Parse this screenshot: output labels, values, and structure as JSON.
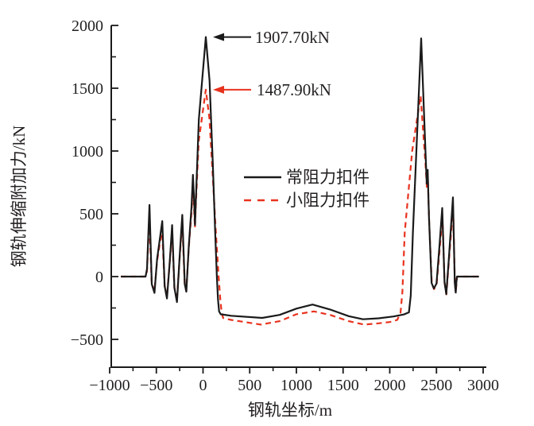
{
  "figure": {
    "background": "#ffffff",
    "accent_red": "#e8321e",
    "ink": "#1a1a1a"
  },
  "chart_data": {
    "type": "line",
    "title": "",
    "xlabel": "钢轨坐标/m",
    "ylabel": "钢轨伸缩附加力/kN",
    "x_range": [
      -1000,
      3000
    ],
    "y_range": [
      -720,
      2000
    ],
    "grid": "off",
    "x_ticks": {
      "major_values": [
        -1000,
        -500,
        0,
        500,
        1000,
        1500,
        2000,
        2500,
        3000
      ],
      "major_labels": [
        "−1000",
        "−500",
        "0",
        "500",
        "1000",
        "1500",
        "2000",
        "2500",
        "3000"
      ],
      "minor_values": [
        -750,
        -250,
        250,
        750,
        1250,
        1750,
        2250,
        2750
      ]
    },
    "y_ticks": {
      "major_values": [
        2000,
        1500,
        1000,
        500,
        0,
        -500
      ],
      "major_labels": [
        "2000",
        "1500",
        "1000",
        "500",
        "0",
        "−500"
      ],
      "minor_values": [
        1750,
        1250,
        750,
        250,
        -250
      ]
    },
    "series": [
      {
        "name": "小阻力扣件",
        "color": "#e8321e",
        "style": "dashed",
        "points": [
          [
            -880,
            0
          ],
          [
            -615,
            0
          ],
          [
            -601,
            40
          ],
          [
            -575,
            470
          ],
          [
            -550,
            -55
          ],
          [
            -521,
            -120
          ],
          [
            -493,
            120
          ],
          [
            -438,
            385
          ],
          [
            -412,
            -70
          ],
          [
            -387,
            -165
          ],
          [
            -358,
            100
          ],
          [
            -332,
            355
          ],
          [
            -307,
            -85
          ],
          [
            -280,
            -195
          ],
          [
            -250,
            150
          ],
          [
            -223,
            435
          ],
          [
            -197,
            -55
          ],
          [
            -180,
            -115
          ],
          [
            -153,
            225
          ],
          [
            -124,
            500
          ],
          [
            -109,
            730
          ],
          [
            -97,
            560
          ],
          [
            -87,
            390
          ],
          [
            -77,
            580
          ],
          [
            -46,
            1080
          ],
          [
            30,
            1487.9
          ],
          [
            68,
            1260
          ],
          [
            100,
            850
          ],
          [
            135,
            380
          ],
          [
            165,
            20
          ],
          [
            185,
            -180
          ],
          [
            200,
            -290
          ],
          [
            215,
            -330
          ],
          [
            300,
            -345
          ],
          [
            620,
            -382
          ],
          [
            820,
            -355
          ],
          [
            1000,
            -300
          ],
          [
            1187,
            -277
          ],
          [
            1360,
            -305
          ],
          [
            1560,
            -355
          ],
          [
            1726,
            -382
          ],
          [
            1880,
            -372
          ],
          [
            2000,
            -362
          ],
          [
            2080,
            -345
          ],
          [
            2115,
            -290
          ],
          [
            2135,
            -120
          ],
          [
            2160,
            350
          ],
          [
            2240,
            1000
          ],
          [
            2330,
            1440
          ],
          [
            2382,
            900
          ],
          [
            2398,
            700
          ],
          [
            2408,
            780
          ],
          [
            2422,
            430
          ],
          [
            2450,
            -55
          ],
          [
            2474,
            -100
          ],
          [
            2502,
            -60
          ],
          [
            2534,
            210
          ],
          [
            2563,
            480
          ],
          [
            2587,
            -50
          ],
          [
            2606,
            -142
          ],
          [
            2633,
            120
          ],
          [
            2678,
            560
          ],
          [
            2697,
            -55
          ],
          [
            2707,
            -130
          ],
          [
            2715,
            -45
          ],
          [
            2721,
            0
          ],
          [
            2955,
            0
          ]
        ]
      },
      {
        "name": "常阻力扣件",
        "color": "#1a1a1a",
        "style": "solid",
        "points": [
          [
            -880,
            0
          ],
          [
            -615,
            0
          ],
          [
            -600,
            60
          ],
          [
            -574,
            570
          ],
          [
            -549,
            -60
          ],
          [
            -520,
            -130
          ],
          [
            -492,
            140
          ],
          [
            -437,
            442
          ],
          [
            -411,
            -75
          ],
          [
            -386,
            -175
          ],
          [
            -357,
            115
          ],
          [
            -331,
            410
          ],
          [
            -306,
            -90
          ],
          [
            -279,
            -203
          ],
          [
            -249,
            175
          ],
          [
            -222,
            492
          ],
          [
            -196,
            -60
          ],
          [
            -179,
            -120
          ],
          [
            -152,
            245
          ],
          [
            -123,
            555
          ],
          [
            -108,
            810
          ],
          [
            -96,
            620
          ],
          [
            -86,
            410
          ],
          [
            -76,
            630
          ],
          [
            -45,
            1250
          ],
          [
            30,
            1907.7
          ],
          [
            70,
            1560
          ],
          [
            105,
            900
          ],
          [
            130,
            350
          ],
          [
            148,
            0
          ],
          [
            160,
            -180
          ],
          [
            172,
            -277
          ],
          [
            190,
            -300
          ],
          [
            300,
            -312
          ],
          [
            634,
            -329
          ],
          [
            820,
            -305
          ],
          [
            1000,
            -255
          ],
          [
            1173,
            -223
          ],
          [
            1360,
            -262
          ],
          [
            1560,
            -315
          ],
          [
            1713,
            -340
          ],
          [
            1880,
            -332
          ],
          [
            2040,
            -318
          ],
          [
            2150,
            -302
          ],
          [
            2205,
            -285
          ],
          [
            2225,
            -150
          ],
          [
            2248,
            350
          ],
          [
            2336,
            1897
          ],
          [
            2380,
            1050
          ],
          [
            2396,
            740
          ],
          [
            2406,
            850
          ],
          [
            2420,
            480
          ],
          [
            2448,
            -50
          ],
          [
            2472,
            -95
          ],
          [
            2500,
            -55
          ],
          [
            2532,
            240
          ],
          [
            2562,
            546
          ],
          [
            2586,
            -45
          ],
          [
            2605,
            -139
          ],
          [
            2632,
            140
          ],
          [
            2677,
            631
          ],
          [
            2696,
            -50
          ],
          [
            2706,
            -128
          ],
          [
            2714,
            -40
          ],
          [
            2720,
            0
          ],
          [
            2955,
            0
          ]
        ]
      }
    ],
    "annotations": [
      {
        "text": "1907.70kN",
        "value_kN": 1907.7,
        "series": "常阻力扣件",
        "target_xy": [
          30,
          1907.7
        ],
        "arrow_color": "#1a1a1a",
        "text_color": "#231f20"
      },
      {
        "text": "1487.90kN",
        "value_kN": 1487.9,
        "series": "小阻力扣件",
        "target_xy": [
          30,
          1487.9
        ],
        "arrow_color": "#e8321e",
        "text_color": "#231f20"
      }
    ],
    "legend": {
      "position": "center",
      "entries": [
        {
          "label": "常阻力扣件",
          "color": "#1a1a1a",
          "style": "solid"
        },
        {
          "label": "小阻力扣件",
          "color": "#e8321e",
          "style": "dashed"
        }
      ]
    }
  }
}
